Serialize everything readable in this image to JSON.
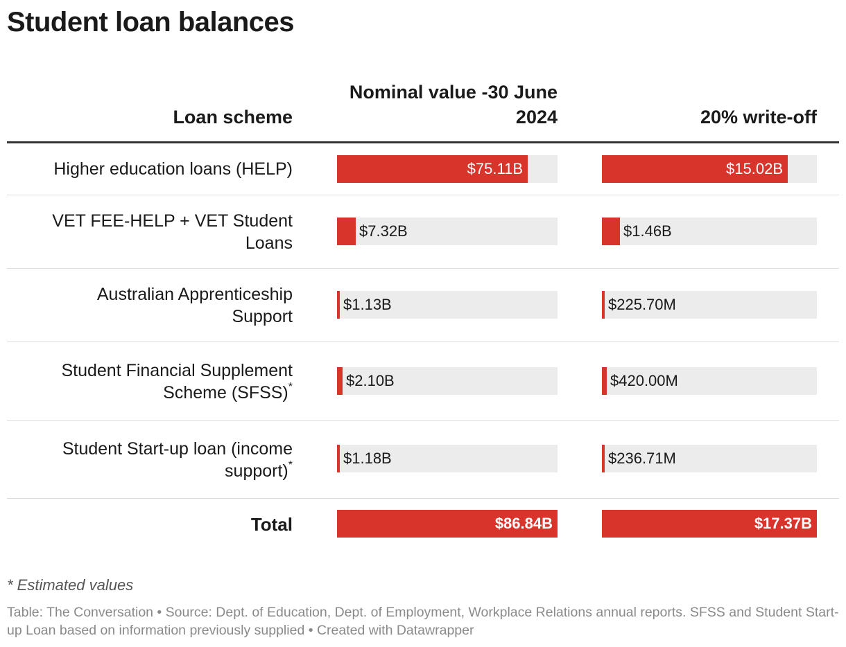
{
  "title": "Student loan balances",
  "headers": {
    "label": "Loan scheme",
    "col1": "Nominal value -30 June 2024",
    "col2": "20% write-off"
  },
  "chart_data": {
    "type": "table",
    "title": "Student loan balances",
    "columns": [
      "Loan scheme",
      "Nominal value -30 June 2024",
      "20% write-off"
    ],
    "rows": [
      {
        "scheme": "Higher education loans (HELP)",
        "asterisk": false,
        "nominal": 75.11,
        "nominal_label": "$75.11B",
        "writeoff": 15.02,
        "writeoff_label": "$15.02B"
      },
      {
        "scheme": "VET FEE-HELP + VET Student Loans",
        "asterisk": false,
        "nominal": 7.32,
        "nominal_label": "$7.32B",
        "writeoff": 1.46,
        "writeoff_label": "$1.46B"
      },
      {
        "scheme": "Australian Apprenticeship Support",
        "asterisk": false,
        "nominal": 1.13,
        "nominal_label": "$1.13B",
        "writeoff": 0.2257,
        "writeoff_label": "$225.70M"
      },
      {
        "scheme": "Student Financial Supplement Scheme (SFSS)",
        "asterisk": true,
        "nominal": 2.1,
        "nominal_label": "$2.10B",
        "writeoff": 0.42,
        "writeoff_label": "$420.00M"
      },
      {
        "scheme": "Student Start-up loan (income support)",
        "asterisk": true,
        "nominal": 1.18,
        "nominal_label": "$1.18B",
        "writeoff": 0.23671,
        "writeoff_label": "$236.71M"
      }
    ],
    "total": {
      "scheme": "Total",
      "nominal": 86.84,
      "nominal_label": "$86.84B",
      "writeoff": 17.37,
      "writeoff_label": "$17.37B"
    },
    "scale_max": {
      "nominal": 86.84,
      "writeoff": 17.37
    },
    "bar_color": "#d9342b",
    "track_color": "#ececec"
  },
  "note": "* Estimated values",
  "footer": "Table: The Conversation • Source: Dept. of Education, Dept. of Employment, Workplace Relations annual reports. SFSS and Student Start-up Loan based on information previously supplied • Created with Datawrapper"
}
